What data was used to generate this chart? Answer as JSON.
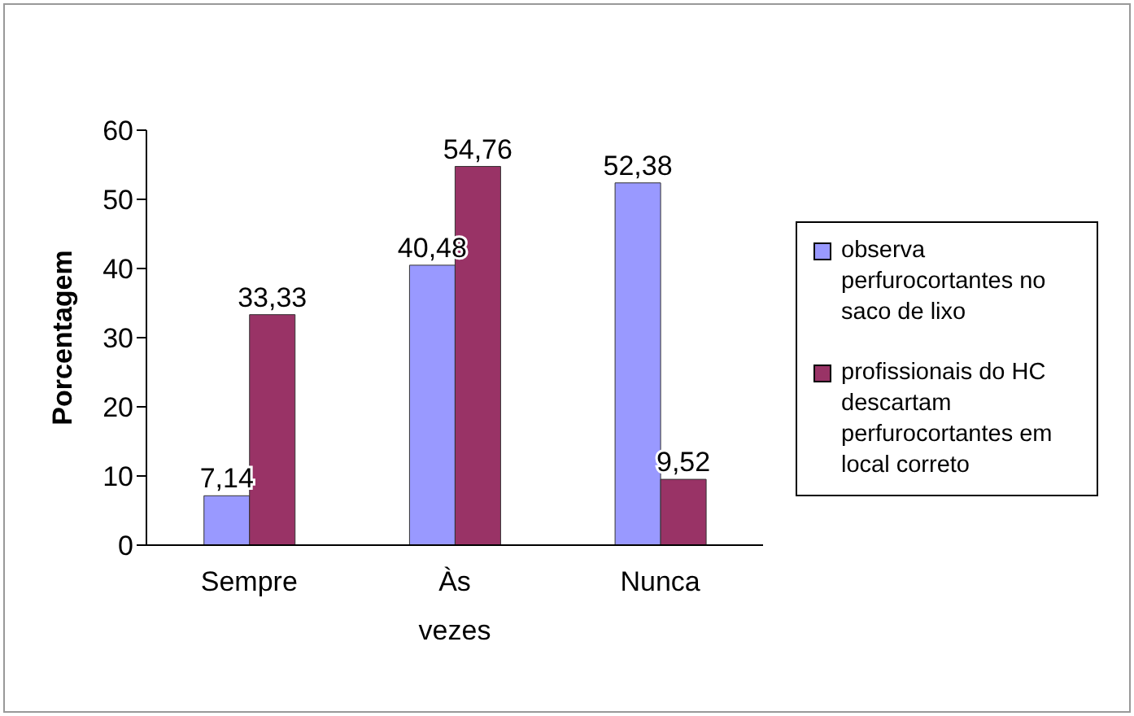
{
  "chart_data": {
    "type": "bar",
    "ylabel": "Porcentagem",
    "categories": [
      "Sempre",
      "Às vezes",
      "Nunca"
    ],
    "series": [
      {
        "name": "observa perfurocortantes no saco de lixo",
        "color": "#9999ff",
        "values": [
          7.14,
          40.48,
          52.38
        ],
        "value_labels": [
          "7,14",
          "40,48",
          "52,38"
        ]
      },
      {
        "name": "profissionais do HC descartam perfurocortantes em local correto",
        "color": "#993366",
        "values": [
          33.33,
          54.76,
          9.52
        ],
        "value_labels": [
          "33,33",
          "54,76",
          "9,52"
        ]
      }
    ],
    "ylim": [
      0,
      60
    ],
    "yticks": [
      0,
      10,
      20,
      30,
      40,
      50,
      60
    ],
    "grid": false,
    "legend": "right"
  }
}
